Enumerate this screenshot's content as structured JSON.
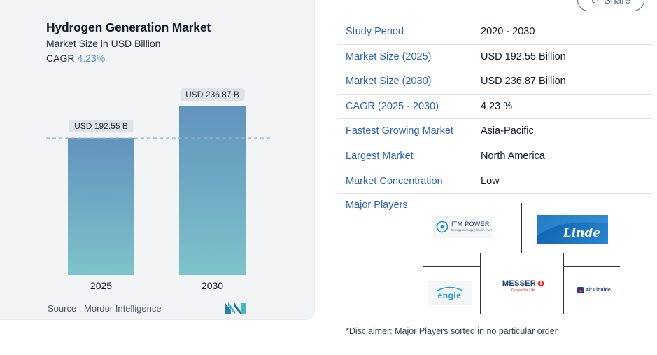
{
  "header": {
    "title": "Hydrogen Generation Market",
    "subtitle": "Market Size in USD Billion",
    "cagr_label": "CAGR",
    "cagr_value": "4.23%"
  },
  "chart_data": {
    "type": "bar",
    "categories": [
      "2025",
      "2030"
    ],
    "values": [
      192.55,
      236.87
    ],
    "data_labels": [
      "USD 192.55 B",
      "USD 236.87 B"
    ],
    "title": "Hydrogen Generation Market",
    "xlabel": "",
    "ylabel": "",
    "ylim": [
      0,
      236.87
    ],
    "grid": false,
    "reference_line": 192.55,
    "colors": {
      "bar_top": "#6293bd",
      "bar_bottom": "#7ec3cb",
      "reference_line": "#8fb2cf"
    }
  },
  "source": "Source :  Mordor Intelligence",
  "share": {
    "label": "Share",
    "icon": "share-icon"
  },
  "info_rows": [
    {
      "key": "Study Period",
      "value": "2020 - 2030"
    },
    {
      "key": "Market Size (2025)",
      "value": "USD 192.55 Billion"
    },
    {
      "key": "Market Size (2030)",
      "value": "USD 236.87 Billion"
    },
    {
      "key": "CAGR (2025 - 2030)",
      "value": "4.23 %"
    },
    {
      "key": "Fastest Growing Market",
      "value": "Asia-Pacific"
    },
    {
      "key": "Largest Market",
      "value": "North America"
    },
    {
      "key": "Market Concentration",
      "value": "Low"
    }
  ],
  "major_players": {
    "label": "Major Players",
    "logos": [
      {
        "name": "ITM POWER",
        "tagline": "Energy Storage | Clean Fuel"
      },
      {
        "name": "Linde"
      },
      {
        "name": "ENGIE"
      },
      {
        "name": "MESSER",
        "tagline": "Gases for Life"
      },
      {
        "name": "Air Liquide"
      }
    ]
  },
  "disclaimer": "*Disclaimer: Major Players sorted in no particular order",
  "colors": {
    "accent": "#2b63b0",
    "card_bg": "#f2f4f6",
    "cagr": "#5b8db8"
  }
}
